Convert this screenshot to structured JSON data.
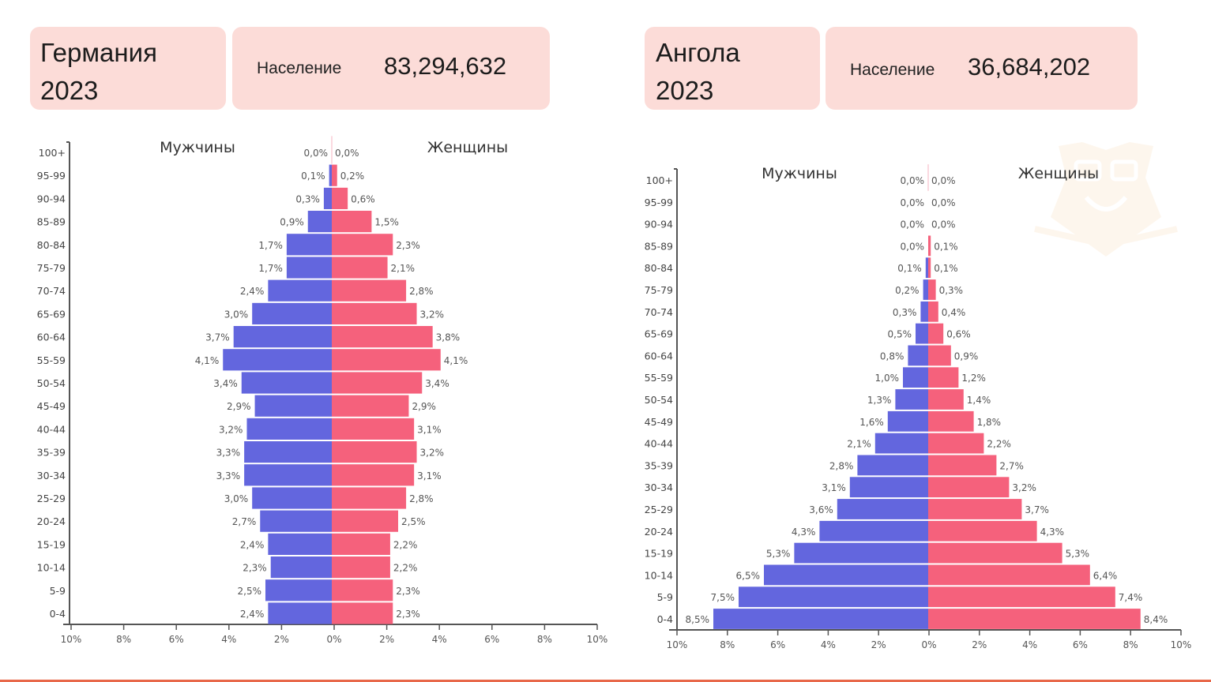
{
  "panels": [
    {
      "country": "Германия",
      "year": "2023",
      "population_label": "Население",
      "population_value": "83,294,632"
    },
    {
      "country": "Ангола",
      "year": "2023",
      "population_label": "Население",
      "population_value": "36,684,202"
    }
  ],
  "colors": {
    "male": "#6366de",
    "female": "#f5617c",
    "card_bg": "#fcdcd8",
    "bottom_bar": "#e8684a"
  },
  "chart_data": [
    {
      "type": "bar",
      "orientation": "horizontal-population-pyramid",
      "title": "Германия 2023",
      "xlabel": "",
      "ylabel": "",
      "xlim": [
        -10,
        10
      ],
      "x_ticks": [
        "10%",
        "8%",
        "6%",
        "4%",
        "2%",
        "0%",
        "2%",
        "4%",
        "6%",
        "8%",
        "10%"
      ],
      "grid": false,
      "legend": "top",
      "categories": [
        "100+",
        "95-99",
        "90-94",
        "85-89",
        "80-84",
        "75-79",
        "70-74",
        "65-69",
        "60-64",
        "55-59",
        "50-54",
        "45-49",
        "40-44",
        "35-39",
        "30-34",
        "25-29",
        "20-24",
        "15-19",
        "10-14",
        "5-9",
        "0-4"
      ],
      "series": [
        {
          "name": "Мужчины",
          "values": [
            0.0,
            0.1,
            0.3,
            0.9,
            1.7,
            1.7,
            2.4,
            3.0,
            3.7,
            4.1,
            3.4,
            2.9,
            3.2,
            3.3,
            3.3,
            3.0,
            2.7,
            2.4,
            2.3,
            2.5,
            2.4
          ],
          "labels": [
            "0,0%",
            "0,1%",
            "0,3%",
            "0,9%",
            "1,7%",
            "1,7%",
            "2,4%",
            "3,0%",
            "3,7%",
            "4,1%",
            "3,4%",
            "2,9%",
            "3,2%",
            "3,3%",
            "3,3%",
            "3,0%",
            "2,7%",
            "2,4%",
            "2,3%",
            "2,5%",
            "2,4%"
          ]
        },
        {
          "name": "Женщины",
          "values": [
            0.0,
            0.2,
            0.6,
            1.5,
            2.3,
            2.1,
            2.8,
            3.2,
            3.8,
            4.1,
            3.4,
            2.9,
            3.1,
            3.2,
            3.1,
            2.8,
            2.5,
            2.2,
            2.2,
            2.3,
            2.3
          ],
          "labels": [
            "0,0%",
            "0,2%",
            "0,6%",
            "1,5%",
            "2,3%",
            "2,1%",
            "2,8%",
            "3,2%",
            "3,8%",
            "4,1%",
            "3,4%",
            "2,9%",
            "3,1%",
            "3,2%",
            "3,1%",
            "2,8%",
            "2,5%",
            "2,2%",
            "2,2%",
            "2,3%",
            "2,3%"
          ]
        }
      ]
    },
    {
      "type": "bar",
      "orientation": "horizontal-population-pyramid",
      "title": "Ангола 2023",
      "xlabel": "",
      "ylabel": "",
      "xlim": [
        -10,
        10
      ],
      "x_ticks": [
        "10%",
        "8%",
        "6%",
        "4%",
        "2%",
        "0%",
        "2%",
        "4%",
        "6%",
        "8%",
        "10%"
      ],
      "grid": false,
      "legend": "top",
      "categories": [
        "100+",
        "95-99",
        "90-94",
        "85-89",
        "80-84",
        "75-79",
        "70-74",
        "65-69",
        "60-64",
        "55-59",
        "50-54",
        "45-49",
        "40-44",
        "35-39",
        "30-34",
        "25-29",
        "20-24",
        "15-19",
        "10-14",
        "5-9",
        "0-4"
      ],
      "series": [
        {
          "name": "Мужчины",
          "values": [
            0.0,
            0.0,
            0.0,
            0.0,
            0.1,
            0.2,
            0.3,
            0.5,
            0.8,
            1.0,
            1.3,
            1.6,
            2.1,
            2.8,
            3.1,
            3.6,
            4.3,
            5.3,
            6.5,
            7.5,
            8.5
          ],
          "labels": [
            "0,0%",
            "0,0%",
            "0,0%",
            "0,0%",
            "0,1%",
            "0,2%",
            "0,3%",
            "0,5%",
            "0,8%",
            "1,0%",
            "1,3%",
            "1,6%",
            "2,1%",
            "2,8%",
            "3,1%",
            "3,6%",
            "4,3%",
            "5,3%",
            "6,5%",
            "7,5%",
            "8,5%"
          ]
        },
        {
          "name": "Женщины",
          "values": [
            0.0,
            0.0,
            0.0,
            0.1,
            0.1,
            0.3,
            0.4,
            0.6,
            0.9,
            1.2,
            1.4,
            1.8,
            2.2,
            2.7,
            3.2,
            3.7,
            4.3,
            5.3,
            6.4,
            7.4,
            8.4
          ],
          "labels": [
            "0,0%",
            "0,0%",
            "0,0%",
            "0,1%",
            "0,1%",
            "0,3%",
            "0,4%",
            "0,6%",
            "0,9%",
            "1,2%",
            "1,4%",
            "1,8%",
            "2,2%",
            "2,7%",
            "3,2%",
            "3,7%",
            "4,3%",
            "5,3%",
            "6,4%",
            "7,4%",
            "8,4%"
          ]
        }
      ]
    }
  ]
}
